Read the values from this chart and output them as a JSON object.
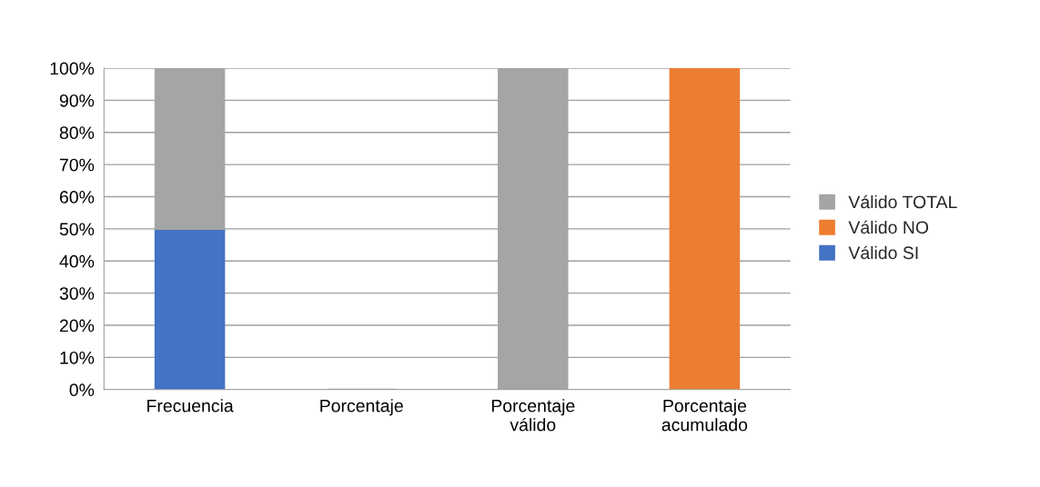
{
  "chart_data": {
    "type": "bar",
    "stacked": true,
    "categories": [
      "Frecuencia",
      "Porcentaje",
      "Porcentaje\nválido",
      "Porcentaje\nacumulado"
    ],
    "series": [
      {
        "name": "Válido SI",
        "color": "#4472c4",
        "values": [
          50,
          null,
          null,
          null
        ]
      },
      {
        "name": "Válido NO",
        "color": "#ed7d31",
        "values": [
          null,
          null,
          null,
          100
        ]
      },
      {
        "name": "Válido TOTAL",
        "color": "#a5a5a5",
        "values": [
          50,
          0,
          100,
          null
        ]
      }
    ],
    "ylim": [
      0,
      100
    ],
    "yticks": [
      {
        "value": 0,
        "label": "0%"
      },
      {
        "value": 10,
        "label": "10%"
      },
      {
        "value": 20,
        "label": "20%"
      },
      {
        "value": 30,
        "label": "30%"
      },
      {
        "value": 40,
        "label": "40%"
      },
      {
        "value": 50,
        "label": "50%"
      },
      {
        "value": 60,
        "label": "60%"
      },
      {
        "value": 70,
        "label": "70%"
      },
      {
        "value": 80,
        "label": "80%"
      },
      {
        "value": 90,
        "label": "90%"
      },
      {
        "value": 100,
        "label": "100%"
      }
    ],
    "grid": "y",
    "legend": "right"
  }
}
